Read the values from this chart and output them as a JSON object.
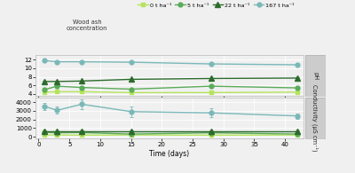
{
  "title": "Wood ash\nconcentration",
  "legend_labels": [
    "0 t ha⁻¹",
    "5 t ha⁻¹",
    "22 t ha⁻¹",
    "167 t ha⁻¹"
  ],
  "colors": [
    "#b5e45a",
    "#5aab5a",
    "#2d6b2d",
    "#7ab8b8"
  ],
  "markers": [
    "s",
    "o",
    "^",
    "o"
  ],
  "marker_sizes": [
    3.5,
    3.5,
    4.5,
    3.5
  ],
  "x_days": [
    1,
    3,
    7,
    15,
    28,
    42
  ],
  "ph_data": {
    "series_0": [
      4.4,
      4.5,
      4.5,
      4.3,
      4.3,
      4.4
    ],
    "series_1": [
      5.0,
      5.8,
      5.5,
      5.1,
      5.8,
      5.4
    ],
    "series_2": [
      6.9,
      6.9,
      7.0,
      7.4,
      7.6,
      7.7
    ],
    "series_3": [
      11.8,
      11.5,
      11.5,
      11.4,
      11.0,
      10.8
    ]
  },
  "ph_errors": {
    "series_0": [
      0.1,
      0.1,
      0.1,
      0.1,
      0.1,
      0.1
    ],
    "series_1": [
      0.1,
      0.15,
      0.15,
      0.1,
      0.1,
      0.1
    ],
    "series_2": [
      0.1,
      0.1,
      0.1,
      0.1,
      0.1,
      0.1
    ],
    "series_3": [
      0.15,
      0.1,
      0.15,
      0.15,
      0.2,
      0.15
    ]
  },
  "cond_data": {
    "series_0": [
      200,
      200,
      175,
      200,
      175,
      200
    ],
    "series_1": [
      500,
      450,
      475,
      300,
      450,
      300
    ],
    "series_2": [
      600,
      600,
      600,
      600,
      600,
      600
    ],
    "series_3": [
      3500,
      3050,
      3750,
      2900,
      2750,
      2400
    ]
  },
  "cond_errors": {
    "series_0": [
      50,
      50,
      40,
      40,
      50,
      40
    ],
    "series_1": [
      100,
      100,
      100,
      100,
      100,
      100
    ],
    "series_2": [
      80,
      80,
      80,
      80,
      80,
      80
    ],
    "series_3": [
      400,
      400,
      600,
      600,
      500,
      300
    ]
  },
  "ph_ylim": [
    3.5,
    13
  ],
  "ph_yticks": [
    4,
    6,
    8,
    10,
    12
  ],
  "cond_ylim": [
    -200,
    4500
  ],
  "cond_yticks": [
    0,
    1000,
    2000,
    3000,
    4000
  ],
  "xlim": [
    -0.5,
    43
  ],
  "xticks": [
    0,
    5,
    10,
    15,
    20,
    25,
    30,
    35,
    40
  ],
  "xlabel": "Time (days)",
  "ylabel_top": "pH",
  "ylabel_bottom": "Conductivity (μS cm⁻¹)",
  "bg_color": "#f0f0f0",
  "grid_color": "#ffffff",
  "label_panel_color": "#cccccc",
  "line_width": 1.0
}
